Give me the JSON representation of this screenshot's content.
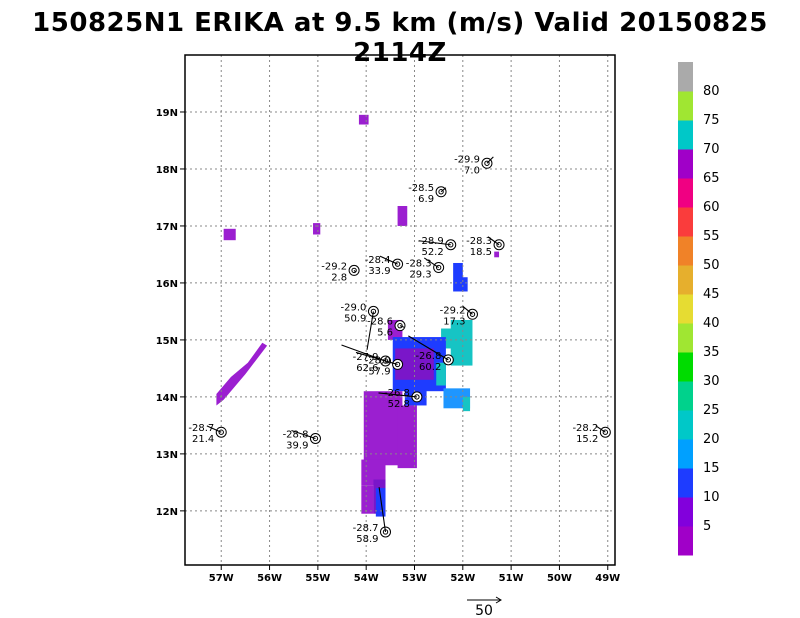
{
  "title": "150825N1 ERIKA at 9.5 km (m/s) Valid 20150825 2114Z",
  "chart_data": {
    "type": "scatter",
    "title": "150825N1 ERIKA at 9.5 km (m/s) Valid 20150825 2114Z",
    "xlabel": "",
    "ylabel": "",
    "xlim": [
      -57.75,
      -48.85
    ],
    "ylim": [
      11.05,
      20.0
    ],
    "grid": true,
    "x_ticks": [
      -57,
      -56,
      -55,
      -54,
      -53,
      -52,
      -51,
      -50,
      -49
    ],
    "x_tick_labels": [
      "57W",
      "56W",
      "55W",
      "54W",
      "53W",
      "52W",
      "51W",
      "50W",
      "49W"
    ],
    "y_ticks": [
      12,
      13,
      14,
      15,
      16,
      17,
      18,
      19
    ],
    "y_tick_labels": [
      "12N",
      "13N",
      "14N",
      "15N",
      "16N",
      "17N",
      "18N",
      "19N"
    ],
    "colorbar": {
      "levels": [
        5,
        10,
        15,
        20,
        25,
        30,
        35,
        40,
        45,
        50,
        55,
        60,
        65,
        70,
        75,
        80
      ],
      "labels": [
        "5",
        "10",
        "15",
        "20",
        "25",
        "30",
        "35",
        "40",
        "45",
        "50",
        "55",
        "60",
        "65",
        "70",
        "75",
        "80"
      ],
      "colors": [
        "#a000c8",
        "#8200dc",
        "#1e3cff",
        "#00a0ff",
        "#00c8c8",
        "#00d28c",
        "#00dc00",
        "#a0e632",
        "#e6dc32",
        "#e6af2d",
        "#f08228",
        "#fa3c3c",
        "#f00082",
        "#a000c8",
        "#00c8c8",
        "#a0e632",
        "#aaaaaa"
      ]
    },
    "reference_vector": {
      "label": "50",
      "speed": 50
    },
    "shading_colors": {
      "purple": "#9b1fd0",
      "dark_purple": "#7a16c9",
      "blue": "#1e3cff",
      "light_blue": "#1e96ff",
      "teal": "#16c4c4"
    },
    "observations": [
      {
        "lon": -51.5,
        "lat": 18.1,
        "temp": "-29.9",
        "wind": "7.0",
        "u": 8,
        "v": -8
      },
      {
        "lon": -52.45,
        "lat": 17.6,
        "temp": "-28.5",
        "wind": "6.9",
        "u": 6,
        "v": -5
      },
      {
        "lon": -52.25,
        "lat": 16.67,
        "temp": "-28.9",
        "wind": "52.2",
        "u": -40,
        "v": -5
      },
      {
        "lon": -51.25,
        "lat": 16.67,
        "temp": "-28.3",
        "wind": "18.5",
        "u": -14,
        "v": -10
      },
      {
        "lon": -53.35,
        "lat": 16.33,
        "temp": "-28.4",
        "wind": "33.9",
        "u": -22,
        "v": -10
      },
      {
        "lon": -52.5,
        "lat": 16.27,
        "temp": "-28.3",
        "wind": "29.3",
        "u": -18,
        "v": -12
      },
      {
        "lon": -54.25,
        "lat": 16.22,
        "temp": "-29.2",
        "wind": "2.8",
        "u": 2,
        "v": 2
      },
      {
        "lon": -53.85,
        "lat": 15.5,
        "temp": "-29.0",
        "wind": "50.9",
        "u": -8,
        "v": 48
      },
      {
        "lon": -53.3,
        "lat": 15.25,
        "temp": "-28.6",
        "wind": "5.6",
        "u": 5,
        "v": 2
      },
      {
        "lon": -51.8,
        "lat": 15.45,
        "temp": "-29.2",
        "wind": "17.3",
        "u": -12,
        "v": -10
      },
      {
        "lon": -53.6,
        "lat": 14.63,
        "temp": "-27.9",
        "wind": "62.6",
        "u": -55,
        "v": -20
      },
      {
        "lon": -53.35,
        "lat": 14.57,
        "temp": "-28.0",
        "wind": "57.9",
        "u": -52,
        "v": -15
      },
      {
        "lon": -52.3,
        "lat": 14.65,
        "temp": "-26.8",
        "wind": "60.2",
        "u": -50,
        "v": -30
      },
      {
        "lon": -52.95,
        "lat": 14.0,
        "temp": "-26.8",
        "wind": "52.8",
        "u": -48,
        "v": -5
      },
      {
        "lon": -57.0,
        "lat": 13.38,
        "temp": "-28.7",
        "wind": "21.4",
        "u": -18,
        "v": -8
      },
      {
        "lon": -55.05,
        "lat": 13.27,
        "temp": "-28.8",
        "wind": "39.9",
        "u": -30,
        "v": -10
      },
      {
        "lon": -49.05,
        "lat": 13.38,
        "temp": "-28.2",
        "wind": "15.2",
        "u": -12,
        "v": -8
      },
      {
        "lon": -53.6,
        "lat": 11.63,
        "temp": "-28.7",
        "wind": "58.9",
        "u": -8,
        "v": -56
      }
    ]
  }
}
